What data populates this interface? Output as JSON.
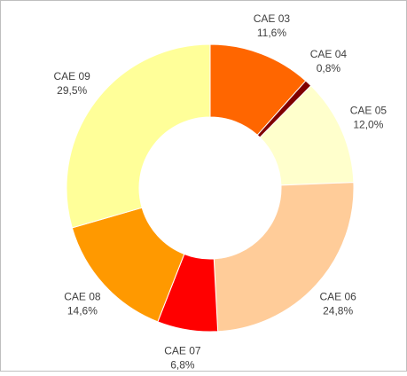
{
  "chart_data": {
    "type": "donut",
    "categories": [
      "CAE 03",
      "CAE 04",
      "CAE 05",
      "CAE 06",
      "CAE 07",
      "CAE 08",
      "CAE 09"
    ],
    "values": [
      11.6,
      0.8,
      12.0,
      24.8,
      6.8,
      14.6,
      29.5
    ],
    "value_labels": [
      "11,6%",
      "0,8%",
      "12,0%",
      "24,8%",
      "6,8%",
      "14,6%",
      "29,5%"
    ],
    "colors": [
      "#ff6600",
      "#800000",
      "#ffffcc",
      "#ffcc99",
      "#ff0000",
      "#ff9900",
      "#ffff99"
    ]
  }
}
